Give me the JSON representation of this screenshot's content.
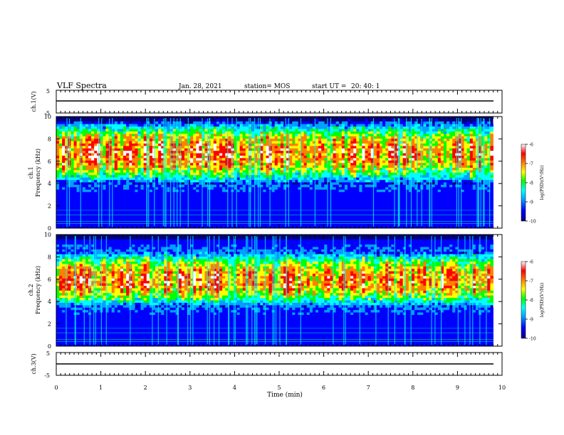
{
  "header": {
    "title": "VLF Spectra",
    "date": "Jan. 28, 2021",
    "station": "station= MOS",
    "start_label": "start  UT  =",
    "start_time": "20: 40: 1"
  },
  "chart_data": [
    {
      "type": "line",
      "panel": "ch1-waveform",
      "ylabel": "ch.1(V)",
      "ylim": [
        -5,
        5
      ],
      "y_ticks": [
        "5",
        "-5"
      ],
      "x_range_min": [
        0,
        10
      ],
      "series": [
        {
          "name": "ch.1",
          "level_V": 0
        }
      ]
    },
    {
      "type": "heatmap",
      "panel": "ch1-spectrogram",
      "ylabel": "ch.1 Frequency (kHz)",
      "ylabel_line1": "ch.1",
      "ylabel_line2": "Frequency (kHz)",
      "ylim": [
        0,
        10
      ],
      "y_ticks": [
        "0",
        "2",
        "4",
        "6",
        "8",
        "10"
      ],
      "x_range_min": [
        0,
        9.8
      ],
      "intensity_band_khz": [
        4,
        9.5
      ],
      "colorbar": {
        "label": "log(PSD)(V²/Hz)",
        "range": [
          -10,
          -6
        ],
        "ticks": [
          "-6",
          "-7",
          "-8",
          "-9",
          "-10"
        ]
      }
    },
    {
      "type": "heatmap",
      "panel": "ch2-spectrogram",
      "ylabel": "ch.2 Frequency (kHz)",
      "ylabel_line1": "ch.2",
      "ylabel_line2": "Frequency (kHz)",
      "ylim": [
        0,
        10
      ],
      "y_ticks": [
        "0",
        "2",
        "4",
        "6",
        "8",
        "10"
      ],
      "x_range_min": [
        0,
        9.8
      ],
      "intensity_band_khz": [
        3.5,
        8.5
      ],
      "colorbar": {
        "label": "log(PSD)(V²/Hz)",
        "range": [
          -10,
          -6
        ],
        "ticks": [
          "-6",
          "-7",
          "-8",
          "-9",
          "-10"
        ]
      }
    },
    {
      "type": "line",
      "panel": "ch3-waveform",
      "ylabel": "ch.3(V)",
      "ylim": [
        -5,
        5
      ],
      "y_ticks": [
        "5",
        "-5"
      ],
      "x_range_min": [
        0,
        10
      ],
      "series": [
        {
          "name": "ch.3",
          "level_V": 0
        }
      ]
    }
  ],
  "x_axis": {
    "label": "Time  (min)",
    "range": [
      0,
      10
    ],
    "ticks": [
      "0",
      "1",
      "2",
      "3",
      "4",
      "5",
      "6",
      "7",
      "8",
      "9",
      "10"
    ]
  },
  "colors": {
    "colormap": [
      "#000080",
      "#0000ff",
      "#00a0ff",
      "#00ffff",
      "#00ff00",
      "#ffff00",
      "#ff8000",
      "#ff0000",
      "#ffffff"
    ],
    "axis": "#000000",
    "ref_line": "#00ff80"
  }
}
